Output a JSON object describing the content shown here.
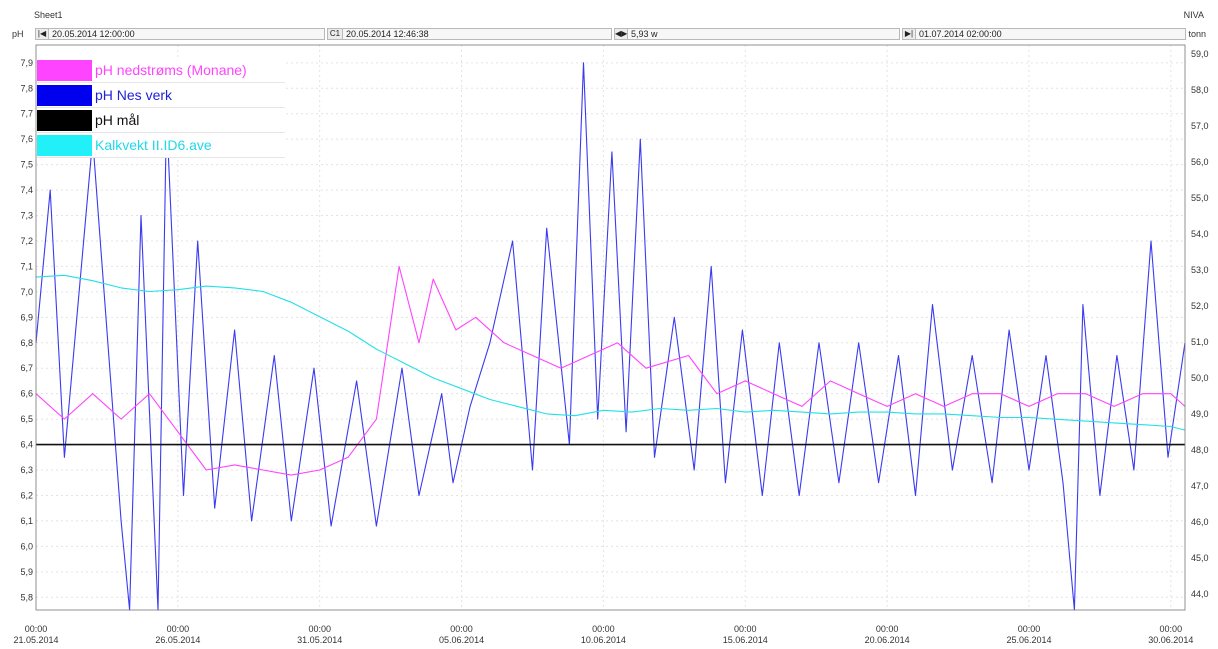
{
  "header": {
    "sheet_title": "Sheet1",
    "brand": "NIVA"
  },
  "controls": {
    "left_unit": "pH",
    "right_unit": "tonn",
    "start_time": "20.05.2014 12:00:00",
    "cursor_label": "C1",
    "cursor_time": "20.05.2014 12:46:38",
    "span": "5,93 w",
    "end_time": "01.07.2014 02:00:00"
  },
  "colors": {
    "magenta": "#ff44ff",
    "blue": "#3a3af0",
    "black": "#111111",
    "cyan": "#22e0e8"
  },
  "chart_data": {
    "type": "line",
    "x_ticks": [
      {
        "day": 0,
        "time": "00:00",
        "date": "21.05.2014"
      },
      {
        "day": 5,
        "time": "00:00",
        "date": "26.05.2014"
      },
      {
        "day": 10,
        "time": "00:00",
        "date": "31.05.2014"
      },
      {
        "day": 15,
        "time": "00:00",
        "date": "05.06.2014"
      },
      {
        "day": 20,
        "time": "00:00",
        "date": "10.06.2014"
      },
      {
        "day": 25,
        "time": "00:00",
        "date": "15.06.2014"
      },
      {
        "day": 30,
        "time": "00:00",
        "date": "20.06.2014"
      },
      {
        "day": 35,
        "time": "00:00",
        "date": "25.06.2014"
      },
      {
        "day": 40,
        "time": "00:00",
        "date": "30.06.2014"
      }
    ],
    "x_range": [
      0,
      40.5
    ],
    "y_left": {
      "label": "pH",
      "range": [
        5.75,
        7.97
      ],
      "ticks": [
        "5,8",
        "5,9",
        "6,0",
        "6,1",
        "6,2",
        "6,3",
        "6,4",
        "6,5",
        "6,6",
        "6,7",
        "6,8",
        "6,9",
        "7,0",
        "7,1",
        "7,2",
        "7,3",
        "7,4",
        "7,5",
        "7,6",
        "7,7",
        "7,8",
        "7,9"
      ]
    },
    "y_right": {
      "label": "tonn",
      "range": [
        43.55,
        59.25
      ],
      "ticks": [
        "44,0",
        "45,0",
        "46,0",
        "47,0",
        "48,0",
        "49,0",
        "50,0",
        "51,0",
        "52,0",
        "53,0",
        "54,0",
        "55,0",
        "56,0",
        "57,0",
        "58,0",
        "59,0"
      ]
    },
    "legend": {
      "placement": "top-left"
    },
    "series": [
      {
        "name": "pH nedstrøms (Monane)",
        "color": "#ff44ff",
        "axis": "left",
        "points": [
          [
            0,
            6.6
          ],
          [
            1,
            6.5
          ],
          [
            2,
            6.6
          ],
          [
            3,
            6.5
          ],
          [
            4,
            6.6
          ],
          [
            5,
            6.45
          ],
          [
            6,
            6.3
          ],
          [
            7,
            6.32
          ],
          [
            8,
            6.3
          ],
          [
            9,
            6.28
          ],
          [
            10,
            6.3
          ],
          [
            11,
            6.35
          ],
          [
            12,
            6.5
          ],
          [
            12.8,
            7.1
          ],
          [
            13.5,
            6.8
          ],
          [
            14,
            7.05
          ],
          [
            14.8,
            6.85
          ],
          [
            15.5,
            6.9
          ],
          [
            16.5,
            6.8
          ],
          [
            17.5,
            6.75
          ],
          [
            18.5,
            6.7
          ],
          [
            19.5,
            6.75
          ],
          [
            20.5,
            6.8
          ],
          [
            21.5,
            6.7
          ],
          [
            23,
            6.75
          ],
          [
            24,
            6.6
          ],
          [
            25,
            6.65
          ],
          [
            26,
            6.6
          ],
          [
            27,
            6.55
          ],
          [
            28,
            6.65
          ],
          [
            29,
            6.6
          ],
          [
            30,
            6.55
          ],
          [
            31,
            6.6
          ],
          [
            32,
            6.55
          ],
          [
            33,
            6.6
          ],
          [
            34,
            6.6
          ],
          [
            35,
            6.55
          ],
          [
            36,
            6.6
          ],
          [
            37,
            6.6
          ],
          [
            38,
            6.55
          ],
          [
            39,
            6.6
          ],
          [
            40,
            6.6
          ],
          [
            40.5,
            6.55
          ]
        ]
      },
      {
        "name": "pH  Nes verk",
        "color": "#3a3af0",
        "axis": "left",
        "points": [
          [
            0,
            6.8
          ],
          [
            0.5,
            7.4
          ],
          [
            1,
            6.35
          ],
          [
            2,
            7.6
          ],
          [
            3,
            6.1
          ],
          [
            3.3,
            5.75
          ],
          [
            3.7,
            7.3
          ],
          [
            4.3,
            5.75
          ],
          [
            4.6,
            7.7
          ],
          [
            5.2,
            6.2
          ],
          [
            5.7,
            7.2
          ],
          [
            6.3,
            6.15
          ],
          [
            7,
            6.85
          ],
          [
            7.6,
            6.1
          ],
          [
            8.4,
            6.75
          ],
          [
            9,
            6.1
          ],
          [
            9.8,
            6.7
          ],
          [
            10.4,
            6.08
          ],
          [
            11.3,
            6.65
          ],
          [
            12,
            6.08
          ],
          [
            12.9,
            6.7
          ],
          [
            13.5,
            6.2
          ],
          [
            14.3,
            6.6
          ],
          [
            14.7,
            6.25
          ],
          [
            15.3,
            6.55
          ],
          [
            16,
            6.8
          ],
          [
            16.8,
            7.2
          ],
          [
            17.5,
            6.3
          ],
          [
            18,
            7.25
          ],
          [
            18.8,
            6.4
          ],
          [
            19.3,
            7.9
          ],
          [
            19.8,
            6.5
          ],
          [
            20.3,
            7.55
          ],
          [
            20.8,
            6.45
          ],
          [
            21.3,
            7.6
          ],
          [
            21.8,
            6.35
          ],
          [
            22.5,
            6.9
          ],
          [
            23.2,
            6.3
          ],
          [
            23.8,
            7.1
          ],
          [
            24.3,
            6.25
          ],
          [
            24.9,
            6.85
          ],
          [
            25.6,
            6.2
          ],
          [
            26.2,
            6.8
          ],
          [
            26.9,
            6.2
          ],
          [
            27.6,
            6.8
          ],
          [
            28.3,
            6.25
          ],
          [
            29,
            6.8
          ],
          [
            29.7,
            6.25
          ],
          [
            30.4,
            6.75
          ],
          [
            31,
            6.2
          ],
          [
            31.6,
            6.95
          ],
          [
            32.3,
            6.3
          ],
          [
            33,
            6.75
          ],
          [
            33.7,
            6.25
          ],
          [
            34.3,
            6.85
          ],
          [
            35,
            6.3
          ],
          [
            35.6,
            6.75
          ],
          [
            36.2,
            6.25
          ],
          [
            36.6,
            5.75
          ],
          [
            36.9,
            6.95
          ],
          [
            37.5,
            6.2
          ],
          [
            38.1,
            6.75
          ],
          [
            38.7,
            6.3
          ],
          [
            39.3,
            7.2
          ],
          [
            39.9,
            6.35
          ],
          [
            40.5,
            6.8
          ]
        ]
      },
      {
        "name": "pH mål",
        "color": "#111111",
        "axis": "left",
        "points": [
          [
            0,
            6.4
          ],
          [
            40.5,
            6.4
          ]
        ]
      },
      {
        "name": "Kalkvekt II.ID6.ave",
        "color": "#22e0e8",
        "axis": "right",
        "points": [
          [
            0,
            52.8
          ],
          [
            1,
            52.85
          ],
          [
            2,
            52.7
          ],
          [
            3,
            52.5
          ],
          [
            4,
            52.4
          ],
          [
            5,
            52.45
          ],
          [
            6,
            52.55
          ],
          [
            7,
            52.5
          ],
          [
            8,
            52.4
          ],
          [
            9,
            52.1
          ],
          [
            10,
            51.7
          ],
          [
            11,
            51.3
          ],
          [
            12,
            50.8
          ],
          [
            13,
            50.4
          ],
          [
            14,
            50.0
          ],
          [
            15,
            49.7
          ],
          [
            16,
            49.4
          ],
          [
            17,
            49.2
          ],
          [
            18,
            49.0
          ],
          [
            19,
            48.95
          ],
          [
            20,
            49.1
          ],
          [
            21,
            49.05
          ],
          [
            22,
            49.15
          ],
          [
            23,
            49.1
          ],
          [
            24,
            49.15
          ],
          [
            25,
            49.05
          ],
          [
            26,
            49.1
          ],
          [
            27,
            49.05
          ],
          [
            28,
            49.0
          ],
          [
            29,
            49.05
          ],
          [
            30,
            49.05
          ],
          [
            31,
            49.0
          ],
          [
            32,
            49.0
          ],
          [
            33,
            48.95
          ],
          [
            34,
            48.9
          ],
          [
            35,
            48.9
          ],
          [
            36,
            48.85
          ],
          [
            37,
            48.8
          ],
          [
            38,
            48.75
          ],
          [
            39,
            48.7
          ],
          [
            40,
            48.65
          ],
          [
            40.5,
            48.55
          ]
        ]
      }
    ]
  }
}
